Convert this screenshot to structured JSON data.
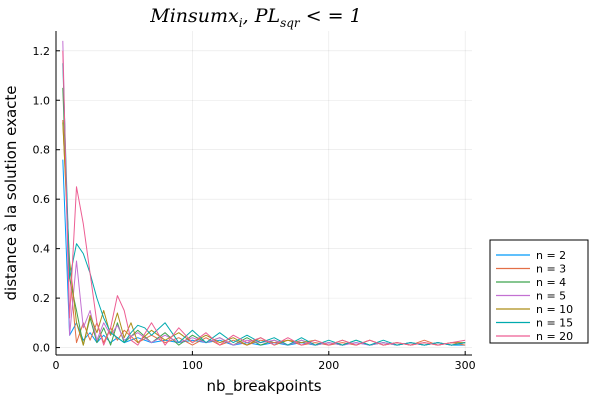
{
  "chart_data": {
    "type": "line",
    "title": "Minsumx_i, PL_sqr < = 1",
    "title_parts": {
      "main": "Minsumx",
      "sub_i": "i",
      "mid": ", PL",
      "sub_sqr": "sqr",
      "tail": " < = 1"
    },
    "xlabel": "nb_breakpoints",
    "ylabel": "distance à la solution exacte",
    "xlim": [
      0,
      305
    ],
    "ylim": [
      -0.03,
      1.28
    ],
    "xticks": [
      0,
      100,
      200,
      300
    ],
    "yticks": [
      0.0,
      0.2,
      0.4,
      0.6,
      0.8,
      1.0,
      1.2
    ],
    "xtick_labels": [
      "0",
      "100",
      "200",
      "300"
    ],
    "ytick_labels": [
      "0.0",
      "0.2",
      "0.4",
      "0.6",
      "0.8",
      "1.0",
      "1.2"
    ],
    "grid": true,
    "legend_position": "outside-right-bottom",
    "series": [
      {
        "name": "n = 2",
        "color": "#009AFA",
        "x": [
          5,
          10,
          15,
          20,
          25,
          30,
          35,
          40,
          45,
          50,
          60,
          70,
          80,
          90,
          100,
          110,
          120,
          130,
          140,
          150,
          160,
          170,
          180,
          190,
          200,
          210,
          220,
          230,
          240,
          250,
          260,
          270,
          280,
          290,
          300
        ],
        "y": [
          0.76,
          0.05,
          0.1,
          0.03,
          0.06,
          0.02,
          0.05,
          0.02,
          0.04,
          0.02,
          0.04,
          0.02,
          0.03,
          0.02,
          0.03,
          0.02,
          0.03,
          0.01,
          0.02,
          0.01,
          0.02,
          0.01,
          0.02,
          0.01,
          0.02,
          0.01,
          0.02,
          0.01,
          0.02,
          0.01,
          0.02,
          0.01,
          0.02,
          0.01,
          0.01
        ]
      },
      {
        "name": "n = 3",
        "color": "#E36F47",
        "x": [
          5,
          10,
          15,
          20,
          25,
          30,
          35,
          40,
          45,
          50,
          60,
          70,
          80,
          90,
          100,
          110,
          120,
          130,
          140,
          150,
          160,
          170,
          180,
          190,
          200,
          210,
          220,
          230,
          240,
          250,
          260,
          270,
          280,
          290,
          300
        ],
        "y": [
          0.92,
          0.3,
          0.02,
          0.1,
          0.03,
          0.1,
          0.02,
          0.08,
          0.03,
          0.07,
          0.02,
          0.05,
          0.02,
          0.04,
          0.01,
          0.04,
          0.01,
          0.03,
          0.01,
          0.03,
          0.02,
          0.03,
          0.01,
          0.02,
          0.01,
          0.02,
          0.01,
          0.03,
          0.01,
          0.02,
          0.01,
          0.03,
          0.01,
          0.02,
          0.01
        ]
      },
      {
        "name": "n = 4",
        "color": "#3EA44E",
        "x": [
          5,
          10,
          15,
          20,
          25,
          30,
          35,
          40,
          45,
          50,
          60,
          70,
          80,
          90,
          100,
          110,
          120,
          130,
          140,
          150,
          160,
          170,
          180,
          190,
          200,
          210,
          220,
          230,
          240,
          250,
          260,
          270,
          280,
          290,
          300
        ],
        "y": [
          1.05,
          0.28,
          0.15,
          0.01,
          0.12,
          0.02,
          0.08,
          0.01,
          0.1,
          0.02,
          0.07,
          0.02,
          0.06,
          0.01,
          0.05,
          0.02,
          0.04,
          0.01,
          0.04,
          0.01,
          0.03,
          0.01,
          0.03,
          0.01,
          0.02,
          0.01,
          0.03,
          0.01,
          0.02,
          0.01,
          0.02,
          0.01,
          0.02,
          0.01,
          0.02
        ]
      },
      {
        "name": "n = 5",
        "color": "#C371D2",
        "x": [
          5,
          10,
          15,
          20,
          25,
          30,
          35,
          40,
          45,
          50,
          60,
          70,
          80,
          90,
          100,
          110,
          120,
          130,
          140,
          150,
          160,
          170,
          180,
          190,
          200,
          210,
          220,
          230,
          240,
          250,
          260,
          270,
          280,
          290,
          300
        ],
        "y": [
          1.24,
          0.05,
          0.35,
          0.08,
          0.15,
          0.03,
          0.1,
          0.05,
          0.09,
          0.03,
          0.06,
          0.02,
          0.05,
          0.02,
          0.04,
          0.02,
          0.04,
          0.01,
          0.03,
          0.02,
          0.03,
          0.01,
          0.03,
          0.01,
          0.02,
          0.01,
          0.02,
          0.01,
          0.02,
          0.01,
          0.02,
          0.01,
          0.02,
          0.01,
          0.02
        ]
      },
      {
        "name": "n = 10",
        "color": "#AC8E18",
        "x": [
          5,
          10,
          15,
          20,
          25,
          30,
          35,
          40,
          45,
          50,
          55,
          60,
          70,
          80,
          90,
          100,
          110,
          120,
          130,
          140,
          150,
          160,
          170,
          180,
          190,
          200,
          210,
          220,
          230,
          240,
          250,
          260,
          270,
          280,
          290,
          300
        ],
        "y": [
          0.91,
          0.35,
          0.1,
          0.01,
          0.13,
          0.06,
          0.15,
          0.05,
          0.14,
          0.04,
          0.1,
          0.02,
          0.07,
          0.03,
          0.06,
          0.02,
          0.05,
          0.02,
          0.04,
          0.01,
          0.04,
          0.01,
          0.03,
          0.02,
          0.03,
          0.01,
          0.03,
          0.01,
          0.03,
          0.01,
          0.02,
          0.01,
          0.02,
          0.01,
          0.02,
          0.02
        ]
      },
      {
        "name": "n = 15",
        "color": "#00AAAE",
        "x": [
          5,
          10,
          15,
          20,
          25,
          30,
          35,
          40,
          45,
          50,
          55,
          60,
          65,
          70,
          80,
          90,
          100,
          110,
          120,
          130,
          140,
          150,
          160,
          170,
          180,
          190,
          200,
          210,
          220,
          230,
          240,
          250,
          260,
          270,
          280,
          290,
          300
        ],
        "y": [
          1.15,
          0.28,
          0.42,
          0.38,
          0.3,
          0.2,
          0.12,
          0.06,
          0.04,
          0.02,
          0.06,
          0.09,
          0.08,
          0.05,
          0.1,
          0.02,
          0.07,
          0.02,
          0.06,
          0.02,
          0.05,
          0.02,
          0.04,
          0.01,
          0.04,
          0.01,
          0.03,
          0.01,
          0.03,
          0.01,
          0.03,
          0.01,
          0.02,
          0.01,
          0.02,
          0.01,
          0.02
        ]
      },
      {
        "name": "n = 20",
        "color": "#ED5E93",
        "x": [
          5,
          10,
          15,
          20,
          25,
          30,
          35,
          40,
          45,
          50,
          55,
          60,
          70,
          80,
          90,
          100,
          110,
          120,
          130,
          140,
          150,
          160,
          170,
          180,
          190,
          200,
          210,
          220,
          230,
          240,
          250,
          260,
          270,
          280,
          290,
          300
        ],
        "y": [
          1.2,
          0.12,
          0.65,
          0.5,
          0.3,
          0.1,
          0.01,
          0.08,
          0.21,
          0.15,
          0.03,
          0.01,
          0.1,
          0.01,
          0.08,
          0.02,
          0.06,
          0.01,
          0.05,
          0.02,
          0.04,
          0.01,
          0.04,
          0.01,
          0.03,
          0.01,
          0.03,
          0.01,
          0.03,
          0.01,
          0.02,
          0.01,
          0.02,
          0.01,
          0.02,
          0.03
        ]
      }
    ]
  }
}
